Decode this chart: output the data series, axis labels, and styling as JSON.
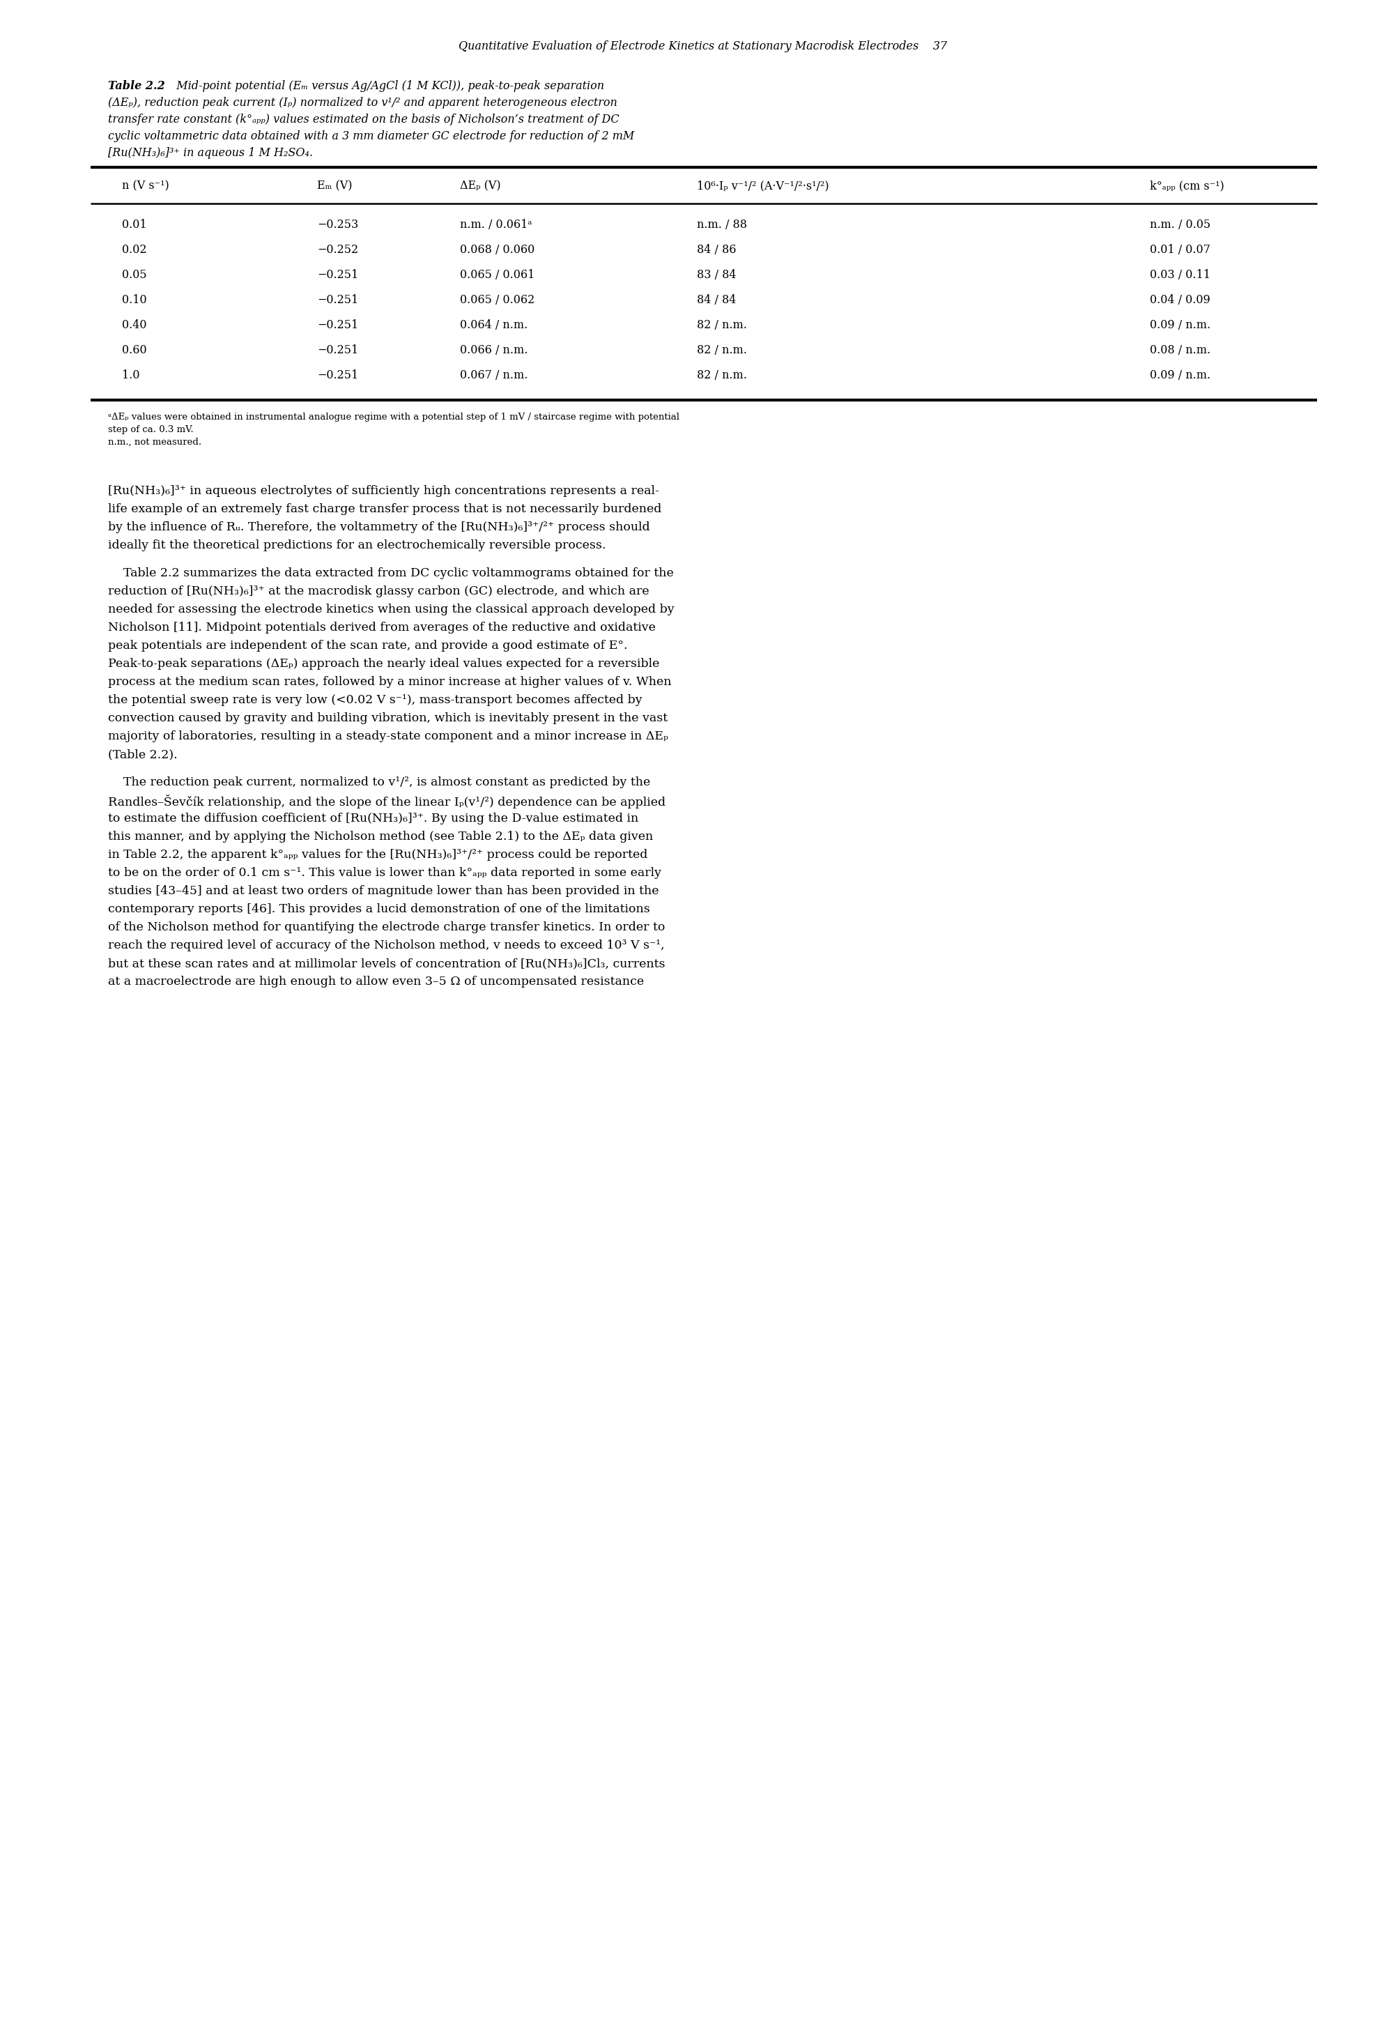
{
  "page_header": "Quantitative Evaluation of Electrode Kinetics at Stationary Macrodisk Electrodes    37",
  "table_caption_bold": "Table 2.2",
  "table_caption_rest_line1": "  Mid-point potential (Eₘ versus Ag/AgCl (1 M KCl)), peak-to-peak separation",
  "table_caption_line2": "(ΔEₚ), reduction peak current (Iₚ) normalized to v¹/² and apparent heterogeneous electron",
  "table_caption_line3": "transfer rate constant (k°ₐₚₚ) values estimated on the basis of Nicholson’s treatment of DC",
  "table_caption_line4": "cyclic voltammetric data obtained with a 3 mm diameter GC electrode for reduction of 2 mM",
  "table_caption_line5": "[Ru(NH₃)₆]³⁺ in aqueous 1 M H₂SO₄.",
  "col_header_0": "n (V s⁻¹)",
  "col_header_1": "Eₘ (V)",
  "col_header_2": "ΔEₚ (V)",
  "col_header_3": "10⁶·Iₚ v⁻¹/² (A·V⁻¹/²·s¹/²)",
  "col_header_4": "k°ₐₚₚ (cm s⁻¹)",
  "rows": [
    [
      "0.01",
      "−0.253",
      "n.m. / 0.061ᵃ",
      "n.m. / 88",
      "n.m. / 0.05"
    ],
    [
      "0.02",
      "−0.252",
      "0.068 / 0.060",
      "84 / 86",
      "0.01 / 0.07"
    ],
    [
      "0.05",
      "−0.251",
      "0.065 / 0.061",
      "83 / 84",
      "0.03 / 0.11"
    ],
    [
      "0.10",
      "−0.251",
      "0.065 / 0.062",
      "84 / 84",
      "0.04 / 0.09"
    ],
    [
      "0.40",
      "−0.251",
      "0.064 / n.m.",
      "82 / n.m.",
      "0.09 / n.m."
    ],
    [
      "0.60",
      "−0.251",
      "0.066 / n.m.",
      "82 / n.m.",
      "0.08 / n.m."
    ],
    [
      "1.0",
      "−0.251",
      "0.067 / n.m.",
      "82 / n.m.",
      "0.09 / n.m."
    ]
  ],
  "footnote1": "ᵃΔEₚ values were obtained in instrumental analogue regime with a potential step of 1 mV / staircase regime with potential",
  "footnote2": "step of ca. 0.3 mV.",
  "footnote3": "n.m., not measured.",
  "body_para1_line1": "[Ru(NH₃)₆]³⁺ in aqueous electrolytes of sufficiently high concentrations represents a real-",
  "body_para1_line2": "life example of an extremely fast charge transfer process that is not necessarily burdened",
  "body_para1_line3": "by the influence of Rᵤ. Therefore, the voltammetry of the [Ru(NH₃)₆]³⁺/²⁺ process should",
  "body_para1_line4": "ideally fit the theoretical predictions for an electrochemically reversible process.",
  "body_para2_line1": "    Table 2.2 summarizes the data extracted from DC cyclic voltammograms obtained for the",
  "body_para2_line2": "reduction of [Ru(NH₃)₆]³⁺ at the macrodisk glassy carbon (GC) electrode, and which are",
  "body_para2_line3": "needed for assessing the electrode kinetics when using the classical approach developed by",
  "body_para2_line4": "Nicholson [11]. Midpoint potentials derived from averages of the reductive and oxidative",
  "body_para2_line5": "peak potentials are independent of the scan rate, and provide a good estimate of E°.",
  "body_para2_line6": "Peak-to-peak separations (ΔEₚ) approach the nearly ideal values expected for a reversible",
  "body_para2_line7": "process at the medium scan rates, followed by a minor increase at higher values of v. When",
  "body_para2_line8": "the potential sweep rate is very low (<0.02 V s⁻¹), mass-transport becomes affected by",
  "body_para2_line9": "convection caused by gravity and building vibration, which is inevitably present in the vast",
  "body_para2_line10": "majority of laboratories, resulting in a steady-state component and a minor increase in ΔEₚ",
  "body_para2_line11": "(Table 2.2).",
  "body_para3_line1": "    The reduction peak current, normalized to v¹/², is almost constant as predicted by the",
  "body_para3_line2": "Randles–Ševčík relationship, and the slope of the linear Iₚ(v¹/²) dependence can be applied",
  "body_para3_line3": "to estimate the diffusion coefficient of [Ru(NH₃)₆]³⁺. By using the D-value estimated in",
  "body_para3_line4": "this manner, and by applying the Nicholson method (see Table 2.1) to the ΔEₚ data given",
  "body_para3_line5": "in Table 2.2, the apparent k°ₐₚₚ values for the [Ru(NH₃)₆]³⁺/²⁺ process could be reported",
  "body_para3_line6": "to be on the order of 0.1 cm s⁻¹. This value is lower than k°ₐₚₚ data reported in some early",
  "body_para3_line7": "studies [43–45] and at least two orders of magnitude lower than has been provided in the",
  "body_para3_line8": "contemporary reports [46]. This provides a lucid demonstration of one of the limitations",
  "body_para3_line9": "of the Nicholson method for quantifying the electrode charge transfer kinetics. In order to",
  "body_para3_line10": "reach the required level of accuracy of the Nicholson method, v needs to exceed 10³ V s⁻¹,",
  "body_para3_line11": "but at these scan rates and at millimolar levels of concentration of [Ru(NH₃)₆]Cl₃, currents",
  "body_para3_line12": "at a macroelectrode are high enough to allow even 3–5 Ω of uncompensated resistance",
  "bg_color": "#ffffff",
  "text_color": "#000000",
  "line_color": "#000000"
}
